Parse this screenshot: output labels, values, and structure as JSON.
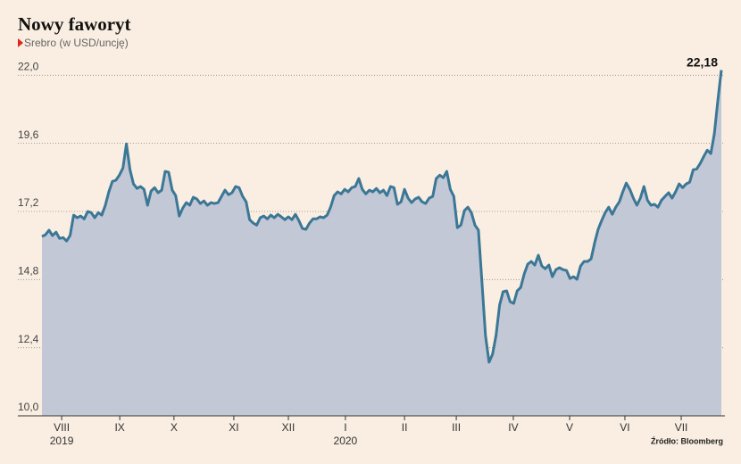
{
  "chart_data": {
    "type": "area",
    "title": "Nowy faworyt",
    "subtitle": "Srebro (w USD/uncję)",
    "source": "Źródło: Bloomberg",
    "year_labels": [
      {
        "value": 5.6,
        "label": "2019"
      },
      {
        "value": 86.2,
        "label": "2020"
      }
    ],
    "xlim": [
      0,
      193
    ],
    "xticks": [
      {
        "value": 5.6,
        "label": "VIII"
      },
      {
        "value": 22.1,
        "label": "IX"
      },
      {
        "value": 37.5,
        "label": "X"
      },
      {
        "value": 54.5,
        "label": "XI"
      },
      {
        "value": 70,
        "label": "XII"
      },
      {
        "value": 86.2,
        "label": "I"
      },
      {
        "value": 103,
        "label": "II"
      },
      {
        "value": 117.7,
        "label": "III"
      },
      {
        "value": 133.9,
        "label": "IV"
      },
      {
        "value": 149.9,
        "label": "V"
      },
      {
        "value": 165.6,
        "label": "VI"
      },
      {
        "value": 181.6,
        "label": "VII"
      }
    ],
    "ylim": [
      10,
      22.45
    ],
    "yticks": [
      {
        "value": 10,
        "label": "10,0"
      },
      {
        "value": 12.4,
        "label": "12,4"
      },
      {
        "value": 14.8,
        "label": "14,8"
      },
      {
        "value": 17.2,
        "label": "17,2"
      },
      {
        "value": 19.6,
        "label": "19,6"
      },
      {
        "value": 22,
        "label": "22,0"
      }
    ],
    "grid": true,
    "color": "#3b7796",
    "fill": "#c3c8d6",
    "values": [
      16.32,
      16.38,
      16.54,
      16.35,
      16.47,
      16.25,
      16.28,
      16.16,
      16.35,
      17.07,
      16.98,
      17.04,
      16.94,
      17.2,
      17.16,
      16.98,
      17.16,
      17.07,
      17.42,
      17.89,
      18.26,
      18.3,
      18.48,
      18.73,
      19.58,
      18.67,
      18.17,
      18.01,
      18.08,
      17.98,
      17.42,
      17.92,
      18.04,
      17.86,
      17.95,
      18.61,
      18.58,
      17.95,
      17.76,
      17.04,
      17.32,
      17.51,
      17.42,
      17.7,
      17.64,
      17.48,
      17.57,
      17.42,
      17.51,
      17.48,
      17.51,
      17.73,
      17.95,
      17.79,
      17.86,
      18.08,
      18.04,
      17.73,
      17.54,
      16.91,
      16.79,
      16.72,
      16.98,
      17.04,
      16.94,
      17.07,
      16.98,
      17.1,
      17.01,
      16.91,
      17.01,
      16.91,
      17.1,
      16.88,
      16.6,
      16.57,
      16.79,
      16.94,
      16.94,
      17.01,
      16.98,
      17.07,
      17.35,
      17.76,
      17.89,
      17.82,
      17.98,
      17.89,
      18.04,
      18.08,
      18.36,
      17.98,
      17.82,
      17.95,
      17.89,
      18.01,
      17.86,
      17.95,
      17.76,
      18.08,
      18.04,
      17.45,
      17.54,
      17.98,
      17.67,
      17.51,
      17.64,
      17.7,
      17.54,
      17.48,
      17.67,
      17.73,
      18.36,
      18.48,
      18.39,
      18.61,
      17.98,
      17.73,
      16.63,
      16.72,
      17.23,
      17.35,
      17.16,
      16.72,
      16.54,
      14.68,
      12.83,
      11.89,
      12.17,
      12.83,
      13.9,
      14.37,
      14.4,
      14.02,
      13.96,
      14.4,
      14.52,
      15.0,
      15.34,
      15.44,
      15.31,
      15.66,
      15.28,
      15.18,
      15.31,
      14.9,
      15.15,
      15.22,
      15.15,
      15.12,
      14.84,
      14.9,
      14.81,
      15.28,
      15.44,
      15.44,
      15.53,
      16.1,
      16.57,
      16.88,
      17.16,
      17.35,
      17.1,
      17.35,
      17.54,
      17.89,
      18.2,
      17.98,
      17.67,
      17.42,
      17.67,
      18.08,
      17.6,
      17.42,
      17.45,
      17.35,
      17.6,
      17.73,
      17.86,
      17.67,
      17.89,
      18.17,
      18.04,
      18.17,
      18.23,
      18.67,
      18.7,
      18.89,
      19.14,
      19.36,
      19.24,
      19.93,
      21.12,
      22.18
    ],
    "value_labels": [
      null,
      null,
      null,
      null,
      null,
      null,
      null,
      null,
      null,
      null,
      null,
      null,
      null,
      null,
      null,
      null,
      null,
      null,
      null,
      null,
      null,
      null,
      null,
      null,
      null,
      null,
      null,
      null,
      null,
      null,
      null,
      null,
      null,
      null,
      null,
      null,
      null,
      null,
      null,
      null,
      null,
      null,
      null,
      null,
      null,
      null,
      null,
      null,
      null,
      null,
      null,
      null,
      null,
      null,
      null,
      null,
      null,
      null,
      null,
      null,
      null,
      null,
      null,
      null,
      null,
      null,
      null,
      null,
      null,
      null,
      null,
      null,
      null,
      null,
      null,
      null,
      null,
      null,
      null,
      null,
      null,
      null,
      null,
      null,
      null,
      null,
      null,
      null,
      null,
      null,
      null,
      null,
      null,
      null,
      null,
      null,
      null,
      null,
      null,
      null,
      null,
      null,
      null,
      null,
      null,
      null,
      null,
      null,
      null,
      null,
      null,
      null,
      null,
      null,
      null,
      null,
      null,
      null,
      null,
      null,
      null,
      null,
      null,
      null,
      null,
      null,
      null,
      null,
      null,
      null,
      null,
      null,
      null,
      null,
      null,
      null,
      null,
      null,
      null,
      null,
      null,
      null,
      null,
      null,
      null,
      null,
      null,
      null,
      null,
      null,
      null,
      null,
      null,
      null,
      null,
      null,
      null,
      null,
      null,
      null,
      null,
      null,
      null,
      null,
      null,
      null,
      null,
      null,
      null,
      null,
      null,
      null,
      null,
      null,
      null,
      null,
      null,
      null,
      null,
      null,
      null,
      null,
      null,
      null,
      null,
      null,
      null,
      null,
      null,
      null,
      null,
      null,
      null,
      "22,18"
    ]
  }
}
